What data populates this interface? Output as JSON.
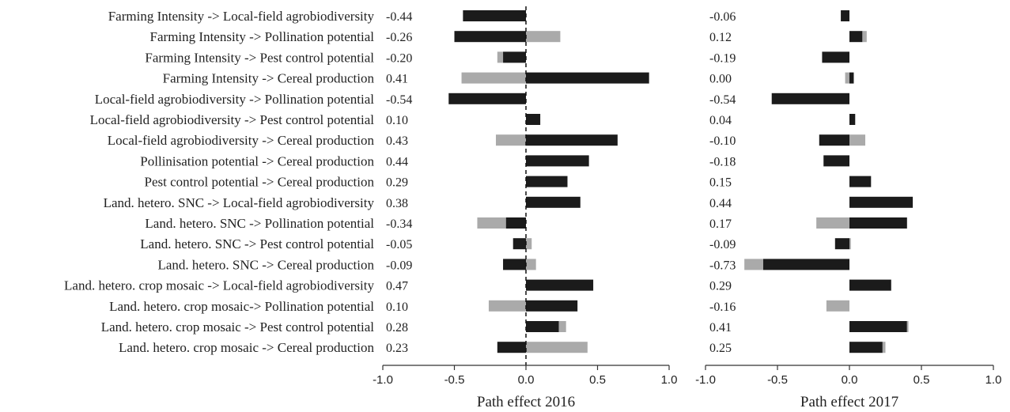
{
  "colors": {
    "direct": "#1b1b1b",
    "indirect": "#aaaaaa",
    "axis": "#333333"
  },
  "chart_data": {
    "type": "bar",
    "orientation": "horizontal",
    "stacked": true,
    "categories": [
      "Farming Intensity -> Local-field agrobiodiversity",
      "Farming Intensity -> Pollination potential",
      "Farming Intensity -> Pest control potential",
      "Farming Intensity -> Cereal production",
      "Local-field agrobiodiversity -> Pollination potential",
      "Local-field agrobiodiversity -> Pest control potential",
      "Local-field agrobiodiversity -> Cereal production",
      "Pollinisation potential -> Cereal production",
      "Pest control potential -> Cereal production",
      "Land. hetero. SNC -> Local-field agrobiodiversity",
      "Land. hetero. SNC -> Pollination potential",
      "Land. hetero. SNC -> Pest control potential",
      "Land. hetero. SNC -> Cereal production",
      "Land. hetero. crop mosaic -> Local-field agrobiodiversity",
      "Land. hetero. crop mosaic-> Pollination potential",
      "Land. hetero. crop mosaic -> Pest control potential",
      "Land. hetero. crop mosaic -> Cereal production"
    ],
    "panels": [
      {
        "xlabel": "Path effect 2016",
        "xlim": [
          -1.0,
          1.0
        ],
        "ticks": [
          "-1.0",
          "-0.5",
          "0.0",
          "0.5",
          "1.0"
        ],
        "zero_line": "dashed",
        "value_labels": [
          "-0.44",
          "-0.26",
          "-0.20",
          "0.41",
          "-0.54",
          "0.10",
          "0.43",
          "0.44",
          "0.29",
          "0.38",
          "-0.34",
          "-0.05",
          "-0.09",
          "0.47",
          "0.10",
          "0.28",
          "0.23"
        ],
        "series": [
          {
            "values": [
              -0.44,
              -0.5,
              -0.16,
              0.86,
              -0.54,
              0.1,
              0.64,
              0.44,
              0.29,
              0.38,
              -0.14,
              -0.09,
              -0.16,
              0.47,
              0.36,
              0.23,
              -0.2
            ]
          },
          {
            "values": [
              0.0,
              0.24,
              -0.04,
              -0.45,
              0.0,
              0.0,
              -0.21,
              0.0,
              0.0,
              0.0,
              -0.2,
              0.04,
              0.07,
              0.0,
              -0.26,
              0.05,
              0.43
            ]
          }
        ]
      },
      {
        "xlabel": "Path effect 2017",
        "xlim": [
          -1.0,
          1.0
        ],
        "ticks": [
          "-1.0",
          "-0.5",
          "0.0",
          "0.5",
          "1.0"
        ],
        "zero_line": "none",
        "value_labels": [
          "-0.06",
          "0.12",
          "-0.19",
          "0.00",
          "-0.54",
          "0.04",
          "-0.10",
          "-0.18",
          "0.15",
          "0.44",
          "0.17",
          "-0.09",
          "-0.73",
          "0.29",
          "-0.16",
          "0.41",
          "0.25"
        ],
        "series": [
          {
            "values": [
              -0.06,
              0.09,
              -0.19,
              0.03,
              -0.54,
              0.04,
              -0.21,
              -0.18,
              0.15,
              0.44,
              0.4,
              -0.1,
              -0.6,
              0.29,
              0.0,
              0.4,
              0.23
            ]
          },
          {
            "values": [
              0.0,
              0.03,
              0.0,
              -0.03,
              0.0,
              0.0,
              0.11,
              0.0,
              0.0,
              0.0,
              -0.23,
              0.01,
              -0.13,
              0.0,
              -0.16,
              0.01,
              0.02
            ]
          }
        ]
      }
    ]
  }
}
